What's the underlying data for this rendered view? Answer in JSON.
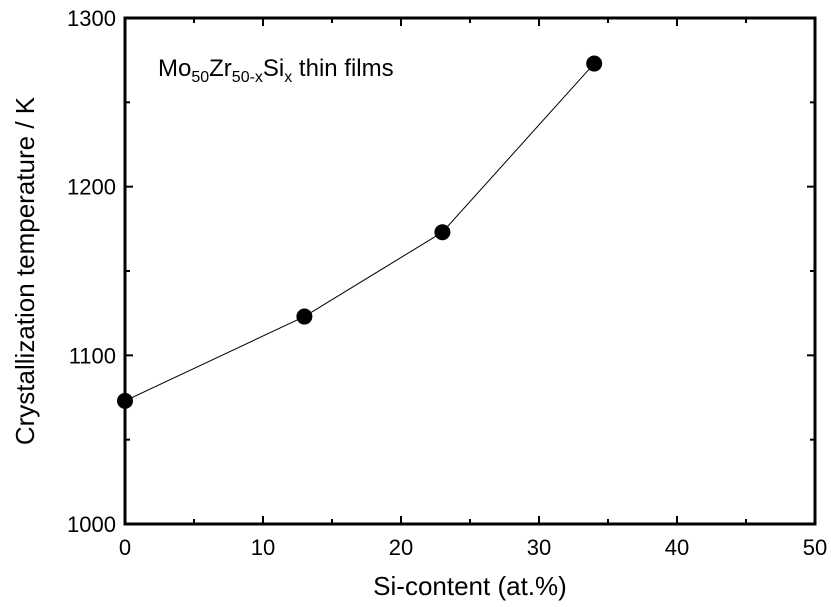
{
  "chart_data": {
    "type": "line",
    "title": "",
    "xlabel": "Si-content (at.%)",
    "ylabel": "Crystallization temperature / K",
    "xlim": [
      0,
      50
    ],
    "ylim": [
      1000,
      1300
    ],
    "x_ticks": [
      0,
      10,
      20,
      30,
      40,
      50
    ],
    "y_ticks": [
      1000,
      1100,
      1200,
      1300
    ],
    "x_tick_labels": [
      "0",
      "10",
      "20",
      "30",
      "40",
      "50"
    ],
    "y_tick_labels": [
      "1000",
      "1100",
      "1200",
      "1300"
    ],
    "grid": false,
    "marker": "filled-circle",
    "line_color": "#000000",
    "annotation": {
      "parts": [
        {
          "text": "Mo",
          "sub": false
        },
        {
          "text": "50",
          "sub": true
        },
        {
          "text": "Zr",
          "sub": false
        },
        {
          "text": "50-x",
          "sub": true
        },
        {
          "text": "Si",
          "sub": false
        },
        {
          "text": "x",
          "sub": true
        },
        {
          "text": " thin films",
          "sub": false
        }
      ]
    },
    "series": [
      {
        "x": [
          0,
          13,
          23,
          34
        ],
        "y": [
          1073,
          1123,
          1173,
          1273
        ]
      }
    ]
  }
}
